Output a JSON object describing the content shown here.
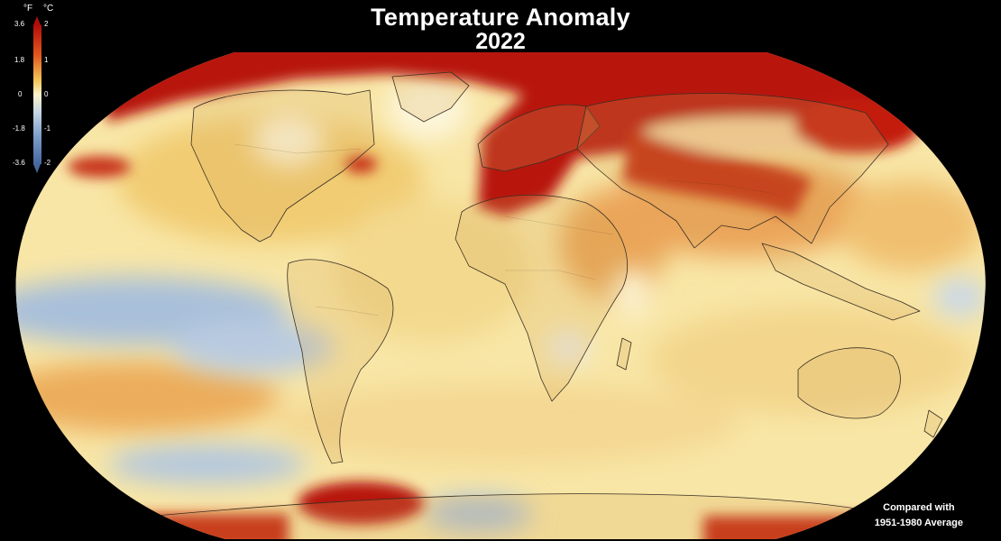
{
  "title": "Temperature Anomaly",
  "year": "2022",
  "legend": {
    "unit_f": "°F",
    "unit_c": "°C",
    "ticks_f": [
      "3.6",
      "1.8",
      "0",
      "-1.8",
      "-3.6"
    ],
    "ticks_c": [
      "2",
      "1",
      "0",
      "-1",
      "-2"
    ],
    "colors": {
      "max": "#b30d0a",
      "high": "#e25a1f",
      "warm": "#f5c75a",
      "neutral": "#fbf3c9",
      "cool": "#c9d8e6",
      "low": "#7b9ec9",
      "min": "#46679f"
    }
  },
  "note": {
    "line1": "Compared with",
    "line2": "1951-1980 Average"
  }
}
